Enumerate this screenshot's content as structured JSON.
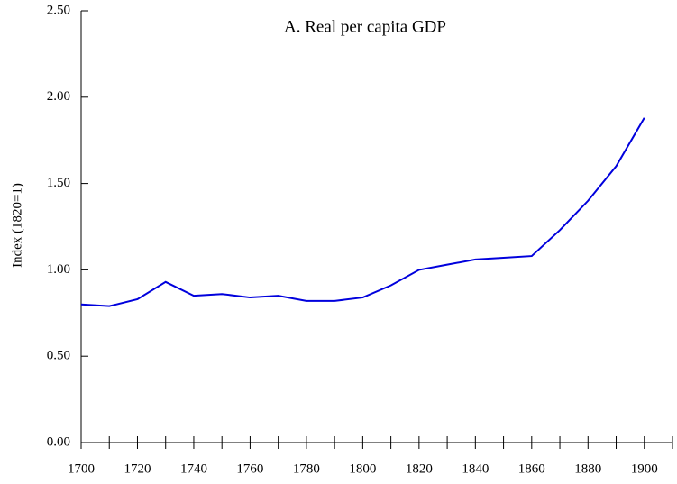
{
  "chart_data": {
    "type": "line",
    "title": "A. Real per capita GDP",
    "y_label": "Index (1820=1)",
    "x": [
      1700,
      1710,
      1720,
      1730,
      1740,
      1750,
      1760,
      1770,
      1780,
      1790,
      1800,
      1810,
      1820,
      1830,
      1840,
      1850,
      1860,
      1870,
      1880,
      1890,
      1900
    ],
    "series": [
      {
        "color": "#0000dd",
        "values": [
          0.8,
          0.79,
          0.83,
          0.93,
          0.85,
          0.86,
          0.84,
          0.85,
          0.82,
          0.82,
          0.84,
          0.91,
          1.0,
          1.03,
          1.06,
          1.07,
          1.08,
          1.23,
          1.4,
          1.6,
          1.88
        ]
      }
    ],
    "xlim": [
      1700,
      1910
    ],
    "xticks": [
      1700,
      1720,
      1740,
      1760,
      1780,
      1800,
      1820,
      1840,
      1860,
      1880,
      1900
    ],
    "xminor_ticks": [
      1710,
      1730,
      1750,
      1770,
      1790,
      1810,
      1830,
      1850,
      1870,
      1890,
      1910
    ],
    "ylim": [
      0,
      2.5
    ],
    "yticks": [
      {
        "value": 0,
        "label": "0.00"
      },
      {
        "value": 0.5,
        "label": "0.50"
      },
      {
        "value": 1,
        "label": "1.00"
      },
      {
        "value": 1.5,
        "label": "1.50"
      },
      {
        "value": 2,
        "label": "2.00"
      },
      {
        "value": 2.5,
        "label": "2.50"
      }
    ],
    "grid": false
  }
}
